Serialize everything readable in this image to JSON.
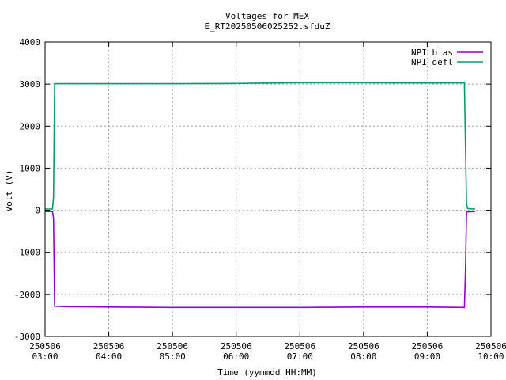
{
  "chart_data": {
    "type": "line",
    "title": "Voltages for MEX",
    "subtitle": "E_RT20250506025252.sfduZ",
    "xlabel": "Time (yymmdd HH:MM)",
    "ylabel": "Volt (V)",
    "xlim": [
      "250506 03:00",
      "250506 10:00"
    ],
    "ylim": [
      -3000,
      4000
    ],
    "grid": true,
    "legend_position": "top-right",
    "x_ticks": [
      {
        "date": "250506",
        "time": "03:00"
      },
      {
        "date": "250506",
        "time": "04:00"
      },
      {
        "date": "250506",
        "time": "05:00"
      },
      {
        "date": "250506",
        "time": "06:00"
      },
      {
        "date": "250506",
        "time": "07:00"
      },
      {
        "date": "250506",
        "time": "08:00"
      },
      {
        "date": "250506",
        "time": "09:00"
      },
      {
        "date": "250506",
        "time": "10:00"
      }
    ],
    "y_ticks": [
      "4000",
      "3000",
      "2000",
      "1000",
      "0",
      "-1000",
      "-2000",
      "-3000"
    ],
    "series": [
      {
        "name": "NPI bias",
        "color": "#9400d3",
        "points": [
          [
            "250506 03:00",
            -30
          ],
          [
            "250506 03:07",
            -30
          ],
          [
            "250506 03:08",
            -180
          ],
          [
            "250506 03:09",
            -2280
          ],
          [
            "250506 03:20",
            -2290
          ],
          [
            "250506 04:00",
            -2300
          ],
          [
            "250506 05:00",
            -2310
          ],
          [
            "250506 06:00",
            -2310
          ],
          [
            "250506 07:00",
            -2310
          ],
          [
            "250506 08:00",
            -2300
          ],
          [
            "250506 09:00",
            -2300
          ],
          [
            "250506 09:35",
            -2310
          ],
          [
            "250506 09:36",
            -1400
          ],
          [
            "250506 09:37",
            -40
          ],
          [
            "250506 09:45",
            -30
          ]
        ]
      },
      {
        "name": "NPI defl",
        "color": "#009e73",
        "points": [
          [
            "250506 03:00",
            30
          ],
          [
            "250506 03:07",
            30
          ],
          [
            "250506 03:08",
            300
          ],
          [
            "250506 03:09",
            3010
          ],
          [
            "250506 04:00",
            3010
          ],
          [
            "250506 05:00",
            3010
          ],
          [
            "250506 06:00",
            3015
          ],
          [
            "250506 06:30",
            3025
          ],
          [
            "250506 07:00",
            3030
          ],
          [
            "250506 08:00",
            3030
          ],
          [
            "250506 09:00",
            3025
          ],
          [
            "250506 09:35",
            3030
          ],
          [
            "250506 09:36",
            1500
          ],
          [
            "250506 09:37",
            150
          ],
          [
            "250506 09:38",
            40
          ],
          [
            "250506 09:45",
            30
          ]
        ]
      }
    ]
  }
}
